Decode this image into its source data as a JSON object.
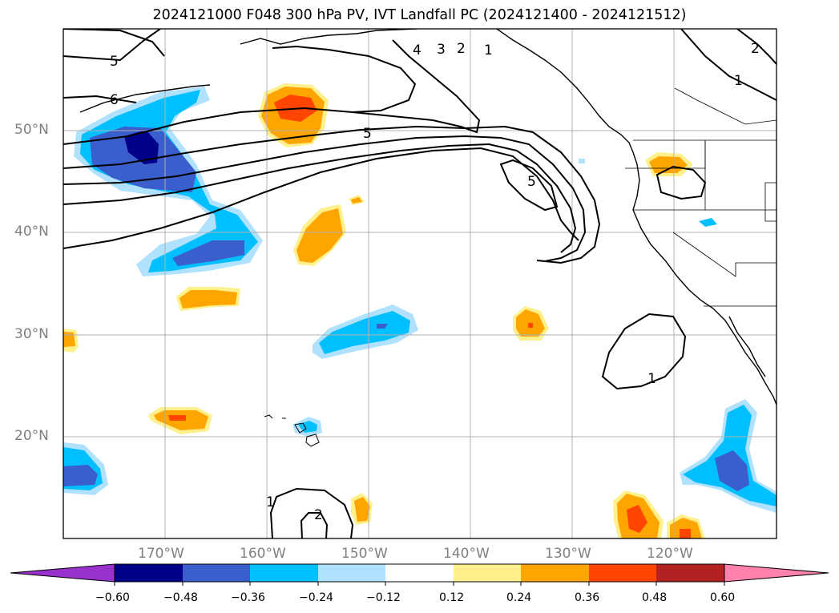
{
  "title": "2024121000 F048 300 hPa PV, IVT Landfall PC (2024121400 - 2024121512)",
  "map": {
    "projection": "PlateCarree",
    "lon_range": [
      -180,
      -110
    ],
    "lat_range": [
      10,
      60
    ],
    "lat_labels": [
      "50°N",
      "40°N",
      "30°N",
      "20°N"
    ],
    "lon_labels": [
      "170°W",
      "160°W",
      "150°W",
      "140°W",
      "130°W",
      "120°W"
    ],
    "contour_labels": [
      "5",
      "6",
      "5",
      "4",
      "3",
      "2",
      "1",
      "5",
      "1",
      "1",
      "2",
      "1",
      "2"
    ],
    "contour_color": "#000000",
    "gridline_color": "#b0b0b0"
  },
  "colorbar": {
    "ticks": [
      "−0.60",
      "−0.48",
      "−0.36",
      "−0.24",
      "−0.12",
      "0.12",
      "0.24",
      "0.36",
      "0.48",
      "0.60"
    ],
    "colors": [
      "#9932cc",
      "#00008b",
      "#3a5fcd",
      "#00bfff",
      "#b0e2ff",
      "#ffffff",
      "#fff08c",
      "#ffa500",
      "#ff4500",
      "#b22222",
      "#ff82ab"
    ],
    "extend": "both"
  }
}
